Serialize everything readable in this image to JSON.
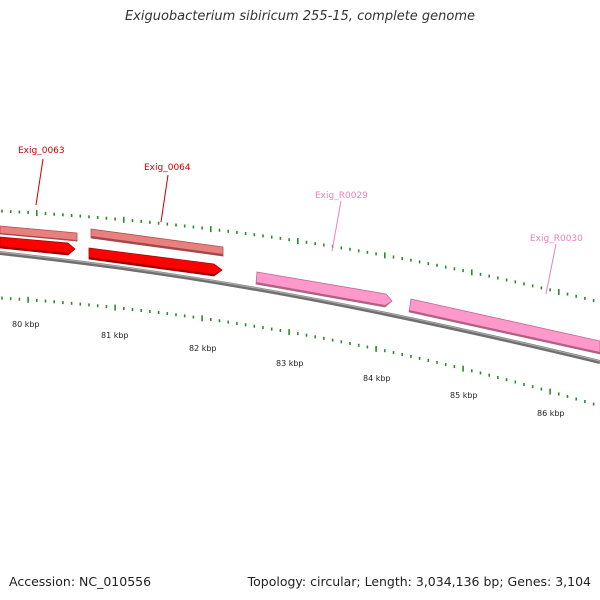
{
  "title": "Exiguobacterium sibiricum 255-15, complete genome",
  "footer": {
    "accession": "Accession: NC_010556",
    "summary": "Topology: circular; Length: 3,034,136 bp; Genes: 3,104"
  },
  "colors": {
    "cds_forward": "#ff0000",
    "cds_reverse": "#e88080",
    "rna": "#ff99cc",
    "rna_label": "#f080b8",
    "cds_label": "#cc0000",
    "backbone": "#808080",
    "ticks": "#2a8c2a"
  },
  "genes": [
    {
      "name": "Exig_0063",
      "type": "CDS",
      "track": "outer",
      "label_color": "cds_label"
    },
    {
      "name": "Exig_0064",
      "type": "CDS",
      "track": "outer",
      "label_color": "cds_label"
    },
    {
      "name": "Exig_R0029",
      "type": "RNA",
      "track": "inner",
      "label_color": "rna_label"
    },
    {
      "name": "Exig_R0030",
      "type": "RNA",
      "track": "inner",
      "label_color": "rna_label"
    }
  ],
  "scale_labels": [
    "80 kbp",
    "81 kbp",
    "82 kbp",
    "83 kbp",
    "84 kbp",
    "85 kbp",
    "86 kbp"
  ]
}
